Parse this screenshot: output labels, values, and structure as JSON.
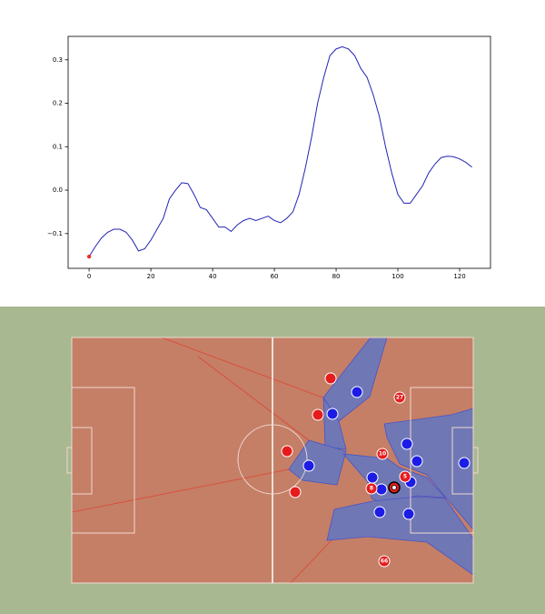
{
  "chart_data": {
    "type": "line",
    "x": [
      0,
      2,
      4,
      6,
      8,
      10,
      12,
      14,
      16,
      18,
      20,
      22,
      24,
      26,
      28,
      30,
      32,
      34,
      36,
      38,
      40,
      42,
      44,
      46,
      48,
      50,
      52,
      54,
      56,
      58,
      60,
      62,
      64,
      66,
      68,
      70,
      72,
      74,
      76,
      78,
      80,
      82,
      84,
      86,
      88,
      90,
      92,
      94,
      96,
      98,
      100,
      102,
      104,
      106,
      108,
      110,
      112,
      114,
      116,
      118,
      120,
      122,
      124
    ],
    "series": [
      {
        "color": "#2323b5",
        "values": [
          -0.153,
          -0.13,
          -0.11,
          -0.097,
          -0.09,
          -0.09,
          -0.097,
          -0.115,
          -0.14,
          -0.135,
          -0.115,
          -0.09,
          -0.065,
          -0.02,
          0.0,
          0.017,
          0.015,
          -0.01,
          -0.04,
          -0.045,
          -0.065,
          -0.085,
          -0.085,
          -0.095,
          -0.08,
          -0.07,
          -0.065,
          -0.07,
          -0.065,
          -0.06,
          -0.07,
          -0.075,
          -0.065,
          -0.05,
          -0.01,
          0.05,
          0.12,
          0.2,
          0.26,
          0.31,
          0.325,
          0.33,
          0.325,
          0.31,
          0.28,
          0.26,
          0.22,
          0.17,
          0.1,
          0.04,
          -0.01,
          -0.03,
          -0.03,
          -0.01,
          0.01,
          0.04,
          0.06,
          0.075,
          0.078,
          0.077,
          0.072,
          0.064,
          0.053
        ]
      }
    ],
    "start_marker_color": "#e8322b",
    "xlim": [
      -6.8,
      130
    ],
    "ylim": [
      -0.18,
      0.354
    ],
    "xticks": [
      0,
      20,
      40,
      60,
      80,
      100,
      120
    ],
    "yticks": [
      {
        "value": -0.1,
        "label": "−0.1"
      },
      {
        "value": 0,
        "label": "0.0"
      },
      0.1,
      0.2,
      0.3
    ]
  },
  "pitch": {
    "player_numbers": [
      "27",
      "10",
      "5",
      "8",
      "66"
    ]
  }
}
